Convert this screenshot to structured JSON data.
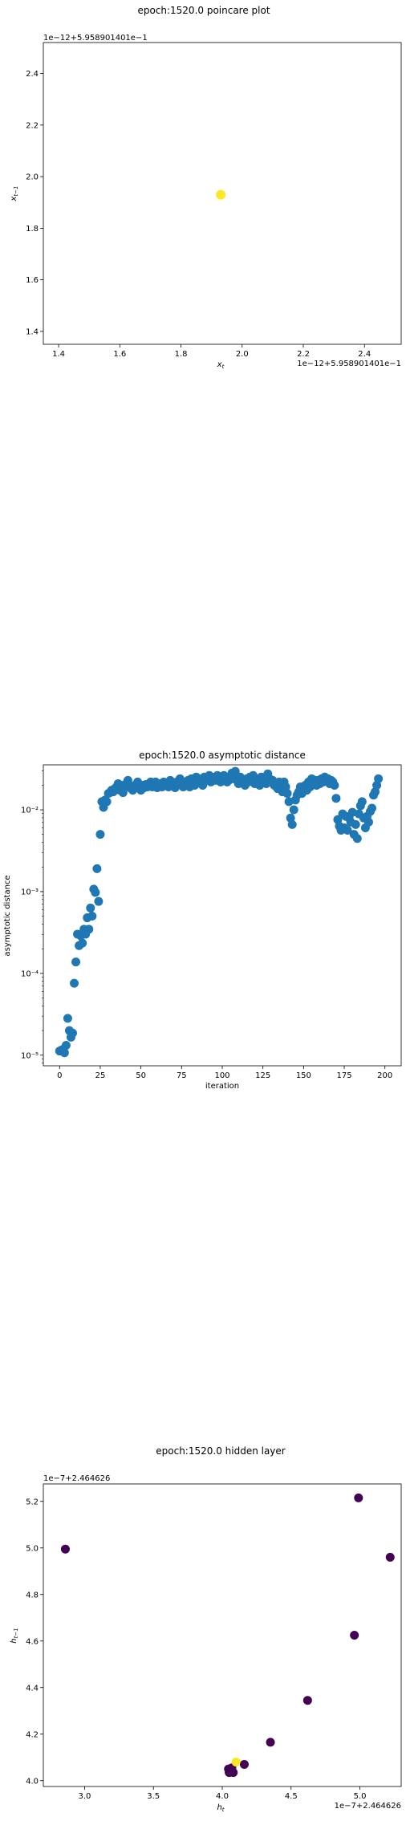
{
  "colors": {
    "line": "#000000",
    "series_blue": "#1f77b4",
    "viridis_dark": "#440154",
    "viridis_yellow": "#fde725"
  },
  "chart_data": [
    {
      "type": "scatter",
      "title": "epoch:1520.0 poincare plot",
      "xlabel": "x_t",
      "ylabel": "x_{t-1}",
      "x_offset_label": "1e−12+5.958901401e−1",
      "y_offset_label": "1e−12+5.958901401e−1",
      "xlim": [
        1.35,
        2.52
      ],
      "ylim": [
        1.35,
        2.52
      ],
      "xticks": [
        1.4,
        1.6,
        1.8,
        2.0,
        2.2,
        2.4
      ],
      "yticks": [
        1.4,
        1.6,
        1.8,
        2.0,
        2.2,
        2.4
      ],
      "xtick_labels": [
        "1.4",
        "1.6",
        "1.8",
        "2.0",
        "2.2",
        "2.4"
      ],
      "ytick_labels": [
        "1.4",
        "1.6",
        "1.8",
        "2.0",
        "2.2",
        "2.4"
      ],
      "points": [
        {
          "x": 1.93,
          "y": 1.93,
          "color": "#fde725"
        }
      ],
      "grid": false
    },
    {
      "type": "scatter",
      "title": "epoch:1520.0 asymptotic distance",
      "xlabel": "iteration",
      "ylabel": "asymptotic distance",
      "yscale": "log",
      "xlim": [
        -10,
        210
      ],
      "ylim_log10": [
        -5.13,
        -1.45
      ],
      "xticks": [
        0,
        25,
        50,
        75,
        100,
        125,
        150,
        175,
        200
      ],
      "xtick_labels": [
        "0",
        "25",
        "50",
        "75",
        "100",
        "125",
        "150",
        "175",
        "200"
      ],
      "yticks_log10": [
        -5,
        -4,
        -3,
        -2
      ],
      "ytick_labels": [
        "10⁻⁵",
        "10⁻⁴",
        "10⁻³",
        "10⁻²"
      ],
      "color": "#1f77b4",
      "grid": false,
      "x": [],
      "log10_y": [
        -4.95,
        -4.94,
        -4.93,
        -4.97,
        -4.88,
        -4.55,
        -4.7,
        -4.78,
        -4.73,
        -4.12,
        -3.86,
        -3.52,
        -3.66,
        -3.54,
        -3.63,
        -3.46,
        -3.52,
        -3.32,
        -3.46,
        -3.2,
        -3.3,
        -2.97,
        -3.01,
        -2.72,
        -3.12,
        -2.3,
        -1.9,
        -1.97,
        -1.88,
        -1.9,
        -1.8,
        -1.79,
        -1.76,
        -1.78,
        -1.74,
        -1.72,
        -1.68,
        -1.76,
        -1.7,
        -1.79,
        -1.73,
        -1.68,
        -1.64,
        -1.7,
        -1.74,
        -1.76,
        -1.72,
        -1.69,
        -1.66,
        -1.72,
        -1.76,
        -1.7,
        -1.73,
        -1.69,
        -1.72,
        -1.68,
        -1.66,
        -1.72,
        -1.7,
        -1.66,
        -1.73,
        -1.68,
        -1.7,
        -1.72,
        -1.66,
        -1.7,
        -1.68,
        -1.72,
        -1.64,
        -1.7,
        -1.67,
        -1.73,
        -1.66,
        -1.69,
        -1.62,
        -1.68,
        -1.72,
        -1.66,
        -1.7,
        -1.64,
        -1.72,
        -1.62,
        -1.66,
        -1.7,
        -1.6,
        -1.66,
        -1.62,
        -1.68,
        -1.7,
        -1.6,
        -1.64,
        -1.62,
        -1.58,
        -1.66,
        -1.63,
        -1.6,
        -1.64,
        -1.58,
        -1.62,
        -1.66,
        -1.6,
        -1.58,
        -1.62,
        -1.66,
        -1.64,
        -1.6,
        -1.55,
        -1.62,
        -1.53,
        -1.64,
        -1.68,
        -1.6,
        -1.63,
        -1.65,
        -1.7,
        -1.62,
        -1.66,
        -1.6,
        -1.64,
        -1.58,
        -1.68,
        -1.62,
        -1.66,
        -1.7,
        -1.6,
        -1.66,
        -1.64,
        -1.68,
        -1.56,
        -1.62,
        -1.66,
        -1.64,
        -1.7,
        -1.68,
        -1.74,
        -1.66,
        -1.72,
        -1.78,
        -1.66,
        -1.72,
        -1.8,
        -1.9,
        -2.1,
        -2.18,
        -2.0,
        -1.88,
        -1.82,
        -1.78,
        -1.72,
        -1.8,
        -1.74,
        -1.7,
        -1.76,
        -1.66,
        -1.72,
        -1.62,
        -1.68,
        -1.64,
        -1.7,
        -1.64,
        -1.68,
        -1.62,
        -1.66,
        -1.6,
        -1.64,
        -1.62,
        -1.68,
        -1.64,
        -1.66,
        -1.7,
        -1.86,
        -2.12,
        -2.2,
        -2.25,
        -2.05,
        -2.22,
        -2.08,
        -2.25,
        -2.1,
        -2.15,
        -2.03,
        -2.3,
        -2.18,
        -2.35,
        -2.05,
        -1.95,
        -1.9,
        -2.1,
        -2.22,
        -2.08,
        -2.15,
        -2.02,
        -1.98,
        -1.82,
        -1.78,
        -1.7,
        -1.62
      ]
    },
    {
      "type": "scatter",
      "title": "epoch:1520.0 hidden layer",
      "xlabel": "h_t",
      "ylabel": "h_{t-1}",
      "x_offset_label": "1e−7+2.464626",
      "y_offset_label": "1e−7+2.464626",
      "xlim": [
        2.7,
        5.3
      ],
      "ylim": [
        3.975,
        5.275
      ],
      "xticks": [
        3.0,
        3.5,
        4.0,
        4.5,
        5.0
      ],
      "yticks": [
        4.0,
        4.2,
        4.4,
        4.6,
        4.8,
        5.0,
        5.2
      ],
      "xtick_labels": [
        "3.0",
        "3.5",
        "4.0",
        "4.5",
        "5.0"
      ],
      "ytick_labels": [
        "4.0",
        "4.2",
        "4.4",
        "4.6",
        "4.8",
        "5.0",
        "5.2"
      ],
      "grid": false,
      "points": [
        {
          "x": 2.86,
          "y": 4.995,
          "color": "#440154"
        },
        {
          "x": 4.99,
          "y": 5.215,
          "color": "#440154"
        },
        {
          "x": 5.22,
          "y": 4.96,
          "color": "#440154"
        },
        {
          "x": 4.96,
          "y": 4.625,
          "color": "#440154"
        },
        {
          "x": 4.62,
          "y": 4.345,
          "color": "#440154"
        },
        {
          "x": 4.35,
          "y": 4.165,
          "color": "#440154"
        },
        {
          "x": 4.16,
          "y": 4.07,
          "color": "#440154"
        },
        {
          "x": 4.07,
          "y": 4.055,
          "color": "#440154"
        },
        {
          "x": 4.06,
          "y": 4.04,
          "color": "#440154"
        },
        {
          "x": 4.05,
          "y": 4.035,
          "color": "#440154"
        },
        {
          "x": 4.045,
          "y": 4.05,
          "color": "#440154"
        },
        {
          "x": 4.08,
          "y": 4.035,
          "color": "#440154"
        },
        {
          "x": 4.1,
          "y": 4.08,
          "color": "#fde725"
        }
      ]
    }
  ]
}
